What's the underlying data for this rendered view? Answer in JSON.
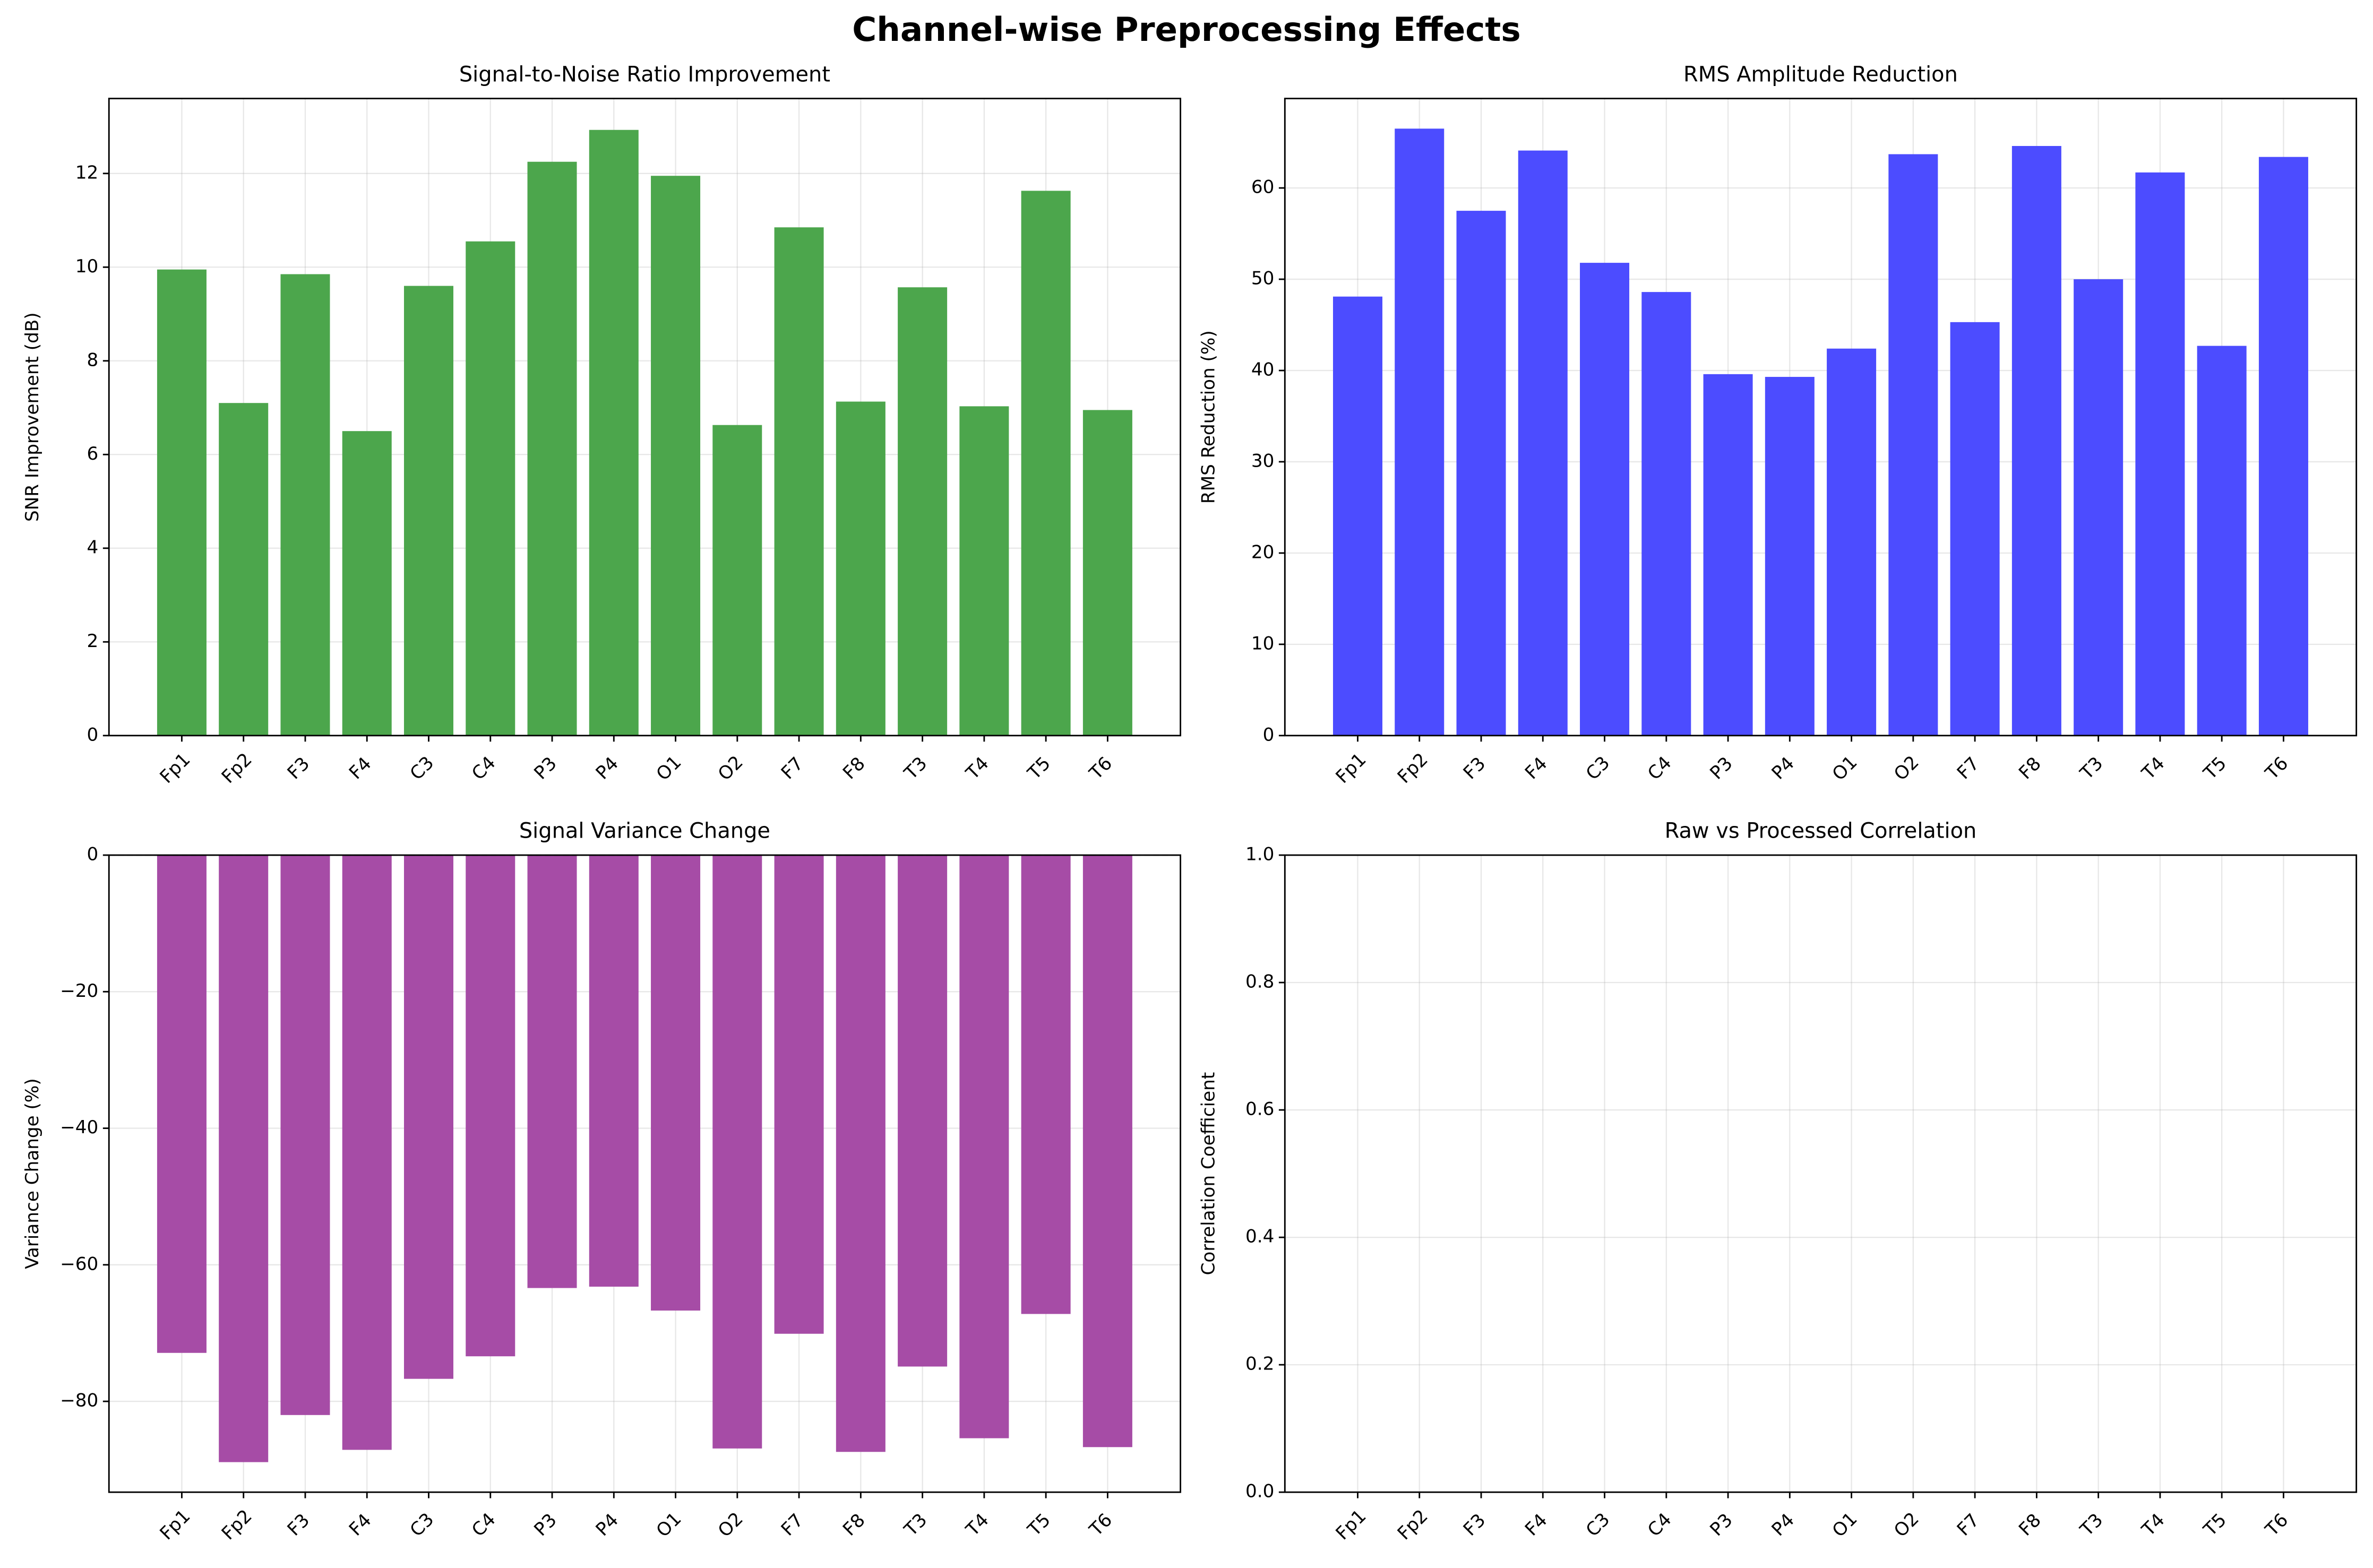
{
  "title": "Channel-wise Preprocessing Effects",
  "chart_data": [
    {
      "type": "bar",
      "title": "Signal-to-Noise Ratio Improvement",
      "y_label": "SNR Improvement (dB)",
      "categories": [
        "Fp1",
        "Fp2",
        "F3",
        "F4",
        "C3",
        "C4",
        "P3",
        "P4",
        "O1",
        "O2",
        "F7",
        "F8",
        "T3",
        "T4",
        "T5",
        "T6"
      ],
      "values": [
        9.95,
        7.1,
        9.85,
        6.5,
        9.6,
        10.55,
        12.25,
        12.93,
        11.95,
        6.63,
        10.85,
        7.13,
        9.57,
        7.03,
        11.63,
        6.95
      ],
      "color": "#4ca64c",
      "ylim": [
        0,
        13.6
      ],
      "yticks": [
        0,
        2,
        4,
        6,
        8,
        10,
        12
      ],
      "grid": true,
      "hline": 0
    },
    {
      "type": "bar",
      "title": "RMS Amplitude Reduction",
      "y_label": "RMS Reduction (%)",
      "categories": [
        "Fp1",
        "Fp2",
        "F3",
        "F4",
        "C3",
        "C4",
        "P3",
        "P4",
        "O1",
        "O2",
        "F7",
        "F8",
        "T3",
        "T4",
        "T5",
        "T6"
      ],
      "values": [
        48.1,
        66.5,
        57.5,
        64.1,
        51.8,
        48.6,
        39.6,
        39.3,
        42.4,
        63.7,
        45.3,
        64.6,
        50.0,
        61.7,
        42.7,
        63.4
      ],
      "color": "#4c4cff",
      "ylim": [
        0,
        69.8
      ],
      "yticks": [
        0,
        10,
        20,
        30,
        40,
        50,
        60
      ],
      "grid": true,
      "hline": 0
    },
    {
      "type": "bar",
      "title": "Signal Variance Change",
      "y_label": "Variance Change (%)",
      "categories": [
        "Fp1",
        "Fp2",
        "F3",
        "F4",
        "C3",
        "C4",
        "P3",
        "P4",
        "O1",
        "O2",
        "F7",
        "F8",
        "T3",
        "T4",
        "T5",
        "T6"
      ],
      "values": [
        -72.9,
        -88.9,
        -82.0,
        -87.1,
        -76.7,
        -73.4,
        -63.4,
        -63.2,
        -66.7,
        -86.9,
        -70.1,
        -87.4,
        -74.9,
        -85.4,
        -67.2,
        -86.7
      ],
      "color": "#a64ca6",
      "ylim": [
        -93.3,
        0
      ],
      "yticks": [
        {
          "value": -80,
          "label": "−80"
        },
        {
          "value": -60,
          "label": "−60"
        },
        {
          "value": -40,
          "label": "−40"
        },
        {
          "value": -20,
          "label": "−20"
        },
        0
      ],
      "grid": true,
      "hline": 0
    },
    {
      "type": "bar",
      "title": "Raw vs Processed Correlation",
      "y_label": "Correlation Coefficient",
      "categories": [
        "Fp1",
        "Fp2",
        "F3",
        "F4",
        "C3",
        "C4",
        "P3",
        "P4",
        "O1",
        "O2",
        "F7",
        "F8",
        "T3",
        "T4",
        "T5",
        "T6"
      ],
      "values": [
        null,
        null,
        null,
        null,
        null,
        null,
        null,
        null,
        null,
        null,
        null,
        null,
        null,
        null,
        null,
        null
      ],
      "color": "#4c4cff",
      "ylim": [
        0,
        1
      ],
      "yticks": [
        {
          "value": 0,
          "label": "0.0"
        },
        {
          "value": 0.2,
          "label": "0.2"
        },
        {
          "value": 0.4,
          "label": "0.4"
        },
        {
          "value": 0.6,
          "label": "0.6"
        },
        {
          "value": 0.8,
          "label": "0.8"
        },
        {
          "value": 1,
          "label": "1.0"
        }
      ],
      "grid": true
    }
  ]
}
